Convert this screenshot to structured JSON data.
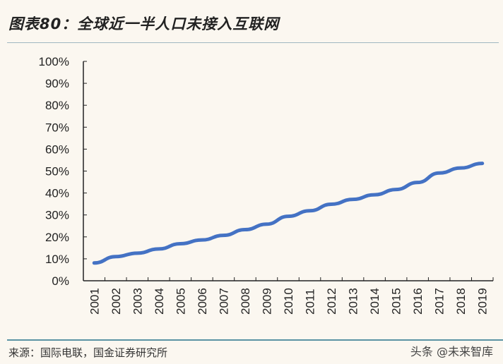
{
  "title": "图表80：全球近一半人口未接入互联网",
  "source": "来源：国际电联，国金证券研究所",
  "watermark": "头条 @未来智库",
  "chart_data": {
    "type": "line",
    "title": "图表80：全球近一半人口未接入互联网",
    "xlabel": "",
    "ylabel": "",
    "ylim": [
      0,
      100
    ],
    "yticks": [
      "0%",
      "10%",
      "20%",
      "30%",
      "40%",
      "50%",
      "60%",
      "70%",
      "80%",
      "90%",
      "100%"
    ],
    "categories": [
      "2001",
      "2002",
      "2003",
      "2004",
      "2005",
      "2006",
      "2007",
      "2008",
      "2009",
      "2010",
      "2011",
      "2012",
      "2013",
      "2014",
      "2015",
      "2016",
      "2017",
      "2018",
      "2019"
    ],
    "values": [
      8.1,
      11.0,
      12.6,
      14.5,
      16.9,
      18.6,
      20.7,
      23.3,
      25.8,
      29.4,
      31.9,
      34.9,
      37.1,
      39.2,
      41.6,
      44.8,
      49.1,
      51.4,
      53.5
    ],
    "color": "#4472c4",
    "grid": false,
    "legend": "none"
  }
}
